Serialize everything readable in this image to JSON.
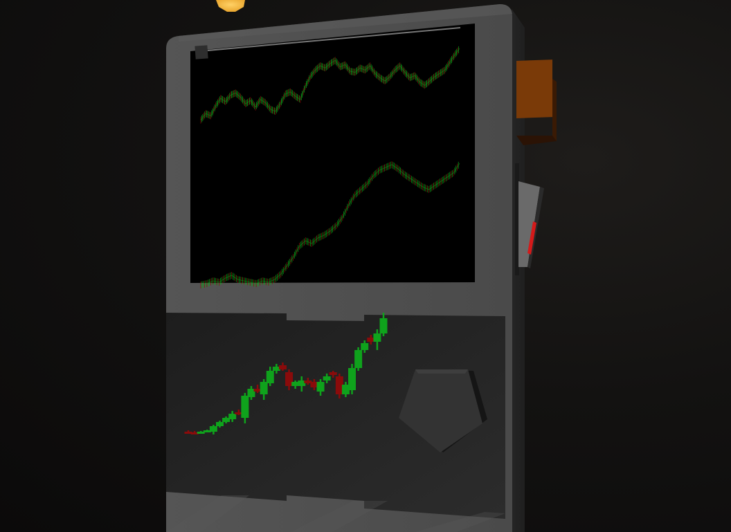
{
  "scene": {
    "type": "3d-trading-terminal",
    "colors": {
      "background": "#141312",
      "cabinet_body": "#4a4a4a",
      "cabinet_side": "#2e2e2e",
      "panel": "#242424",
      "screen": "#000000",
      "bull_candle": "#0fa21c",
      "bear_candle": "#8a0b0b",
      "coin": "#f2b43c",
      "side_block": "#7a3a08",
      "lever_accent": "#d41a1a",
      "knob": "#333333"
    },
    "icons": [
      "coin-icon",
      "pentagon-knob-icon",
      "lever-icon"
    ]
  },
  "chart_data": [
    {
      "type": "line",
      "series": [
        {
          "values": [
            40,
            52,
            48,
            66,
            80,
            74,
            86,
            90,
            82,
            70,
            76,
            64,
            78,
            72,
            60,
            56,
            70,
            88,
            92,
            84,
            78,
            102,
            120,
            132,
            140,
            136,
            144,
            150,
            138,
            142,
            130,
            128,
            136,
            132,
            140,
            126,
            118,
            112,
            120,
            132,
            140,
            128,
            118,
            122,
            110,
            104,
            112,
            120,
            126,
            132,
            146,
            160,
            172
          ]
        }
      ]
    },
    {
      "type": "line",
      "series": [
        {
          "values": [
            2,
            4,
            8,
            6,
            12,
            16,
            10,
            8,
            6,
            4,
            8,
            6,
            10,
            18,
            30,
            42,
            58,
            66,
            62,
            70,
            74,
            80,
            88,
            100,
            118,
            132,
            140,
            148,
            160,
            168,
            172,
            176,
            170,
            162,
            156,
            150,
            144,
            140,
            146,
            152,
            158,
            164,
            178
          ]
        }
      ]
    },
    {
      "type": "bar",
      "series": [
        {
          "candles": [
            {
              "o": 12,
              "h": 14,
              "l": 10,
              "c": 11,
              "dir": "down"
            },
            {
              "o": 11,
              "h": 13,
              "l": 9,
              "c": 10,
              "dir": "down"
            },
            {
              "o": 10,
              "h": 13,
              "l": 9,
              "c": 12,
              "dir": "up"
            },
            {
              "o": 12,
              "h": 15,
              "l": 11,
              "c": 14,
              "dir": "up"
            },
            {
              "o": 12,
              "h": 22,
              "l": 8,
              "c": 20,
              "dir": "up"
            },
            {
              "o": 20,
              "h": 28,
              "l": 18,
              "c": 26,
              "dir": "up"
            },
            {
              "o": 26,
              "h": 34,
              "l": 24,
              "c": 32,
              "dir": "up"
            },
            {
              "o": 30,
              "h": 42,
              "l": 26,
              "c": 38,
              "dir": "up"
            },
            {
              "o": 40,
              "h": 44,
              "l": 36,
              "c": 38,
              "dir": "down"
            },
            {
              "o": 32,
              "h": 68,
              "l": 24,
              "c": 64,
              "dir": "up"
            },
            {
              "o": 62,
              "h": 78,
              "l": 58,
              "c": 74,
              "dir": "up"
            },
            {
              "o": 74,
              "h": 80,
              "l": 68,
              "c": 70,
              "dir": "down"
            },
            {
              "o": 66,
              "h": 88,
              "l": 58,
              "c": 84,
              "dir": "up"
            },
            {
              "o": 82,
              "h": 106,
              "l": 78,
              "c": 100,
              "dir": "up"
            },
            {
              "o": 100,
              "h": 110,
              "l": 96,
              "c": 106,
              "dir": "up"
            },
            {
              "o": 108,
              "h": 112,
              "l": 100,
              "c": 102,
              "dir": "down"
            },
            {
              "o": 98,
              "h": 102,
              "l": 72,
              "c": 78,
              "dir": "down"
            },
            {
              "o": 78,
              "h": 86,
              "l": 74,
              "c": 84,
              "dir": "up"
            },
            {
              "o": 78,
              "h": 92,
              "l": 70,
              "c": 86,
              "dir": "up"
            },
            {
              "o": 86,
              "h": 90,
              "l": 80,
              "c": 82,
              "dir": "down"
            },
            {
              "o": 84,
              "h": 88,
              "l": 72,
              "c": 76,
              "dir": "down"
            },
            {
              "o": 70,
              "h": 88,
              "l": 64,
              "c": 84,
              "dir": "up"
            },
            {
              "o": 86,
              "h": 96,
              "l": 82,
              "c": 92,
              "dir": "up"
            },
            {
              "o": 98,
              "h": 100,
              "l": 90,
              "c": 94,
              "dir": "down"
            },
            {
              "o": 92,
              "h": 96,
              "l": 60,
              "c": 66,
              "dir": "down"
            },
            {
              "o": 66,
              "h": 84,
              "l": 62,
              "c": 80,
              "dir": "up"
            },
            {
              "o": 72,
              "h": 110,
              "l": 66,
              "c": 104,
              "dir": "up"
            },
            {
              "o": 104,
              "h": 134,
              "l": 100,
              "c": 130,
              "dir": "up"
            },
            {
              "o": 130,
              "h": 144,
              "l": 126,
              "c": 140,
              "dir": "up"
            },
            {
              "o": 148,
              "h": 152,
              "l": 138,
              "c": 142,
              "dir": "down"
            },
            {
              "o": 142,
              "h": 160,
              "l": 130,
              "c": 154,
              "dir": "up"
            },
            {
              "o": 154,
              "h": 184,
              "l": 150,
              "c": 176,
              "dir": "up"
            }
          ]
        }
      ]
    }
  ]
}
